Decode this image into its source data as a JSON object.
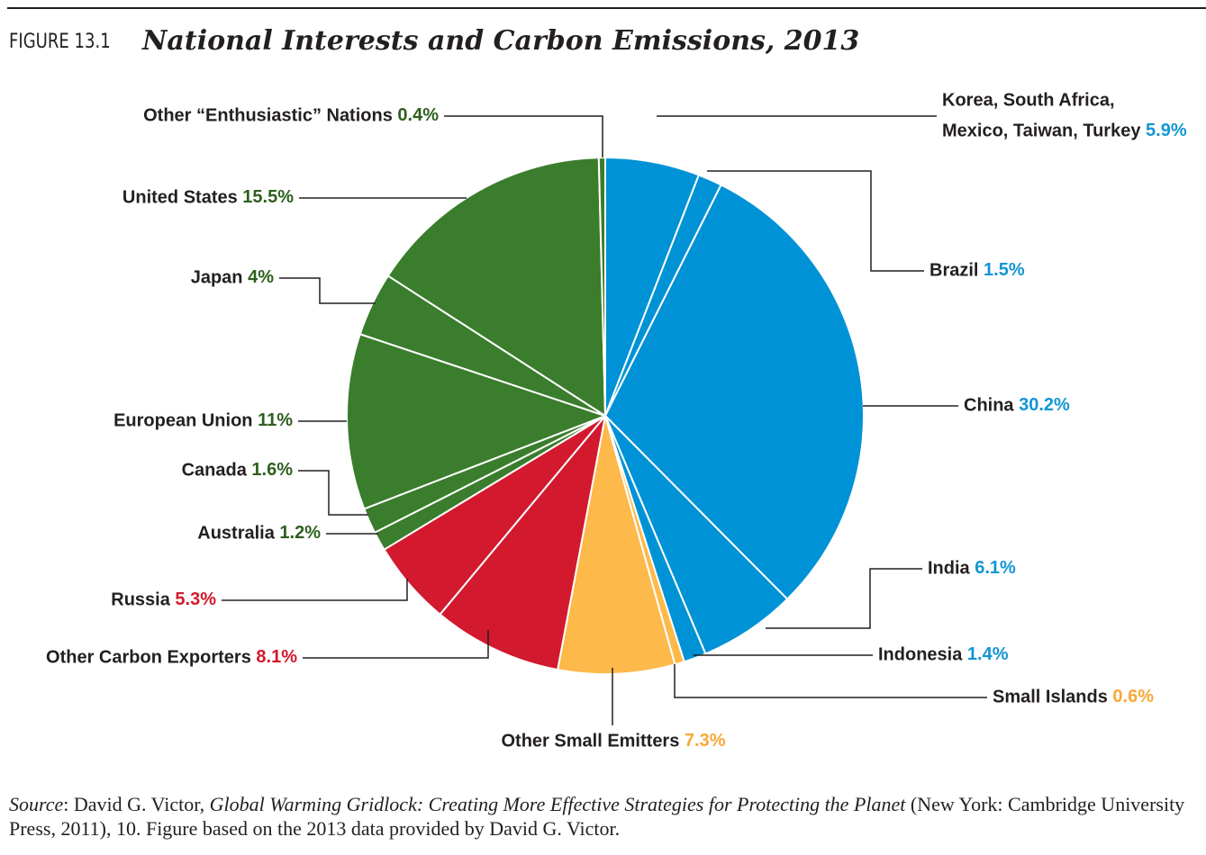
{
  "figure": {
    "label": "FIGURE 13.1",
    "title": "National Interests and Carbon Emissions, 2013"
  },
  "source": {
    "prefix": "Source",
    "author": ": David G. Victor, ",
    "book": "Global Warming Gridlock: Creating More Effective Strategies for Protecting the Planet",
    "rest": " (New York: Cambridge University Press, 2011), 10. Figure based on the 2013 data provided by David G. Victor."
  },
  "colors": {
    "green": "#3a7d2c",
    "blue": "#0092d6",
    "red": "#d2192e",
    "orange": "#fdb94a",
    "dark_green_text": "#2e5f1f",
    "blue_text": "#1296d3",
    "red_text": "#d2192e",
    "orange_text": "#f7a836"
  },
  "chart_data": {
    "type": "pie",
    "title": "National Interests and Carbon Emissions, 2013",
    "start": "12 o'clock, clockwise",
    "slices": [
      {
        "name": "Korea, South Africa, Mexico, Taiwan, Turkey",
        "value": 5.9,
        "pct_text": "5.9%",
        "color": "blue",
        "label_lines": [
          "Korea, South Africa,",
          "Mexico, Taiwan, Turkey"
        ]
      },
      {
        "name": "Brazil",
        "value": 1.5,
        "pct_text": "1.5%",
        "color": "blue",
        "label_lines": [
          "Brazil"
        ]
      },
      {
        "name": "China",
        "value": 30.2,
        "pct_text": "30.2%",
        "color": "blue",
        "label_lines": [
          "China"
        ]
      },
      {
        "name": "India",
        "value": 6.1,
        "pct_text": "6.1%",
        "color": "blue",
        "label_lines": [
          "India"
        ]
      },
      {
        "name": "Indonesia",
        "value": 1.4,
        "pct_text": "1.4%",
        "color": "blue",
        "label_lines": [
          "Indonesia"
        ]
      },
      {
        "name": "Small Islands",
        "value": 0.6,
        "pct_text": "0.6%",
        "color": "orange",
        "label_lines": [
          "Small Islands"
        ]
      },
      {
        "name": "Other Small Emitters",
        "value": 7.3,
        "pct_text": "7.3%",
        "color": "orange",
        "label_lines": [
          "Other Small Emitters"
        ]
      },
      {
        "name": "Other Carbon Exporters",
        "value": 8.1,
        "pct_text": "8.1%",
        "color": "red",
        "label_lines": [
          "Other Carbon Exporters"
        ]
      },
      {
        "name": "Russia",
        "value": 5.3,
        "pct_text": "5.3%",
        "color": "red",
        "label_lines": [
          "Russia"
        ]
      },
      {
        "name": "Australia",
        "value": 1.2,
        "pct_text": "1.2%",
        "color": "green",
        "label_lines": [
          "Australia"
        ]
      },
      {
        "name": "Canada",
        "value": 1.6,
        "pct_text": "1.6%",
        "color": "green",
        "label_lines": [
          "Canada"
        ]
      },
      {
        "name": "European Union",
        "value": 11,
        "pct_text": "11%",
        "color": "green",
        "label_lines": [
          "European Union"
        ]
      },
      {
        "name": "Japan",
        "value": 4,
        "pct_text": "4%",
        "color": "green",
        "label_lines": [
          "Japan"
        ]
      },
      {
        "name": "United States",
        "value": 15.5,
        "pct_text": "15.5%",
        "color": "green",
        "label_lines": [
          "United States"
        ]
      },
      {
        "name": "Other “Enthusiastic” Nations",
        "value": 0.4,
        "pct_text": "0.4%",
        "color": "green",
        "label_lines": [
          "Other “Enthusiastic” Nations"
        ]
      }
    ]
  }
}
